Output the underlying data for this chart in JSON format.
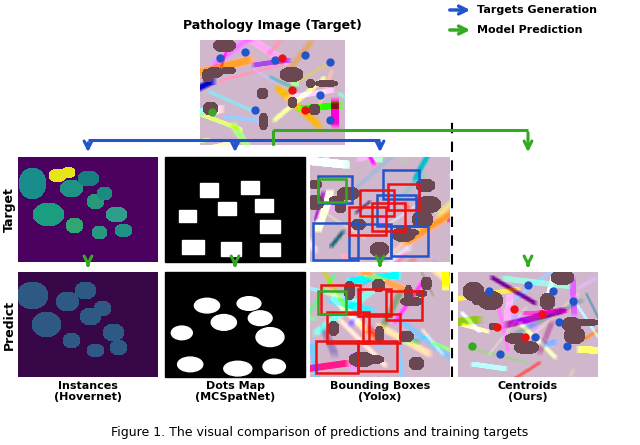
{
  "title": "Pathology Image (Target)",
  "caption": "Figure 1. The visual comparison of predictions and training targets",
  "legend_blue": "Targets Generation",
  "legend_green": "Model Prediction",
  "col_labels_line1": [
    "Instances",
    "Dots Map",
    "Bounding Boxes",
    "Centroids"
  ],
  "col_labels_line2": [
    "(Hovernet)",
    "(MCSpatNet)",
    "(Yolox)",
    "(Ours)"
  ],
  "row_label_1": "Target",
  "row_label_2": "Predict",
  "blue_color": "#2255cc",
  "green_color": "#33aa22",
  "red_color": "#ee1111",
  "fig_w": 6.4,
  "fig_h": 4.45,
  "dpi": 100
}
